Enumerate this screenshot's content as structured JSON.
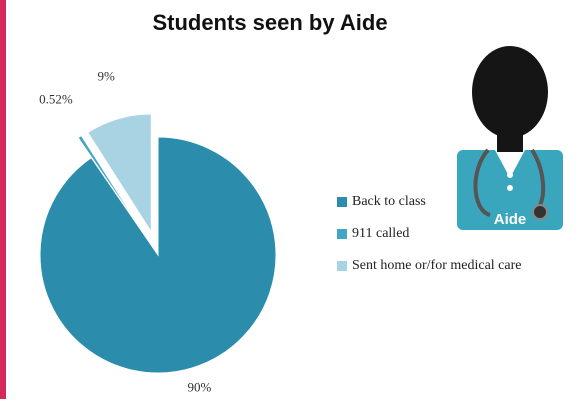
{
  "chart_data": {
    "type": "pie",
    "title": "Students seen by Aide",
    "categories": [
      "Back to class",
      "911 called",
      "Sent home or/for medical care"
    ],
    "values": [
      90,
      0.52,
      9
    ],
    "value_labels": [
      "90%",
      "0.52%",
      "9%"
    ],
    "colors": [
      "#2b8cab",
      "#3fa6c4",
      "#a7d3e3"
    ],
    "legend": "right",
    "annotation": "Aide"
  }
}
